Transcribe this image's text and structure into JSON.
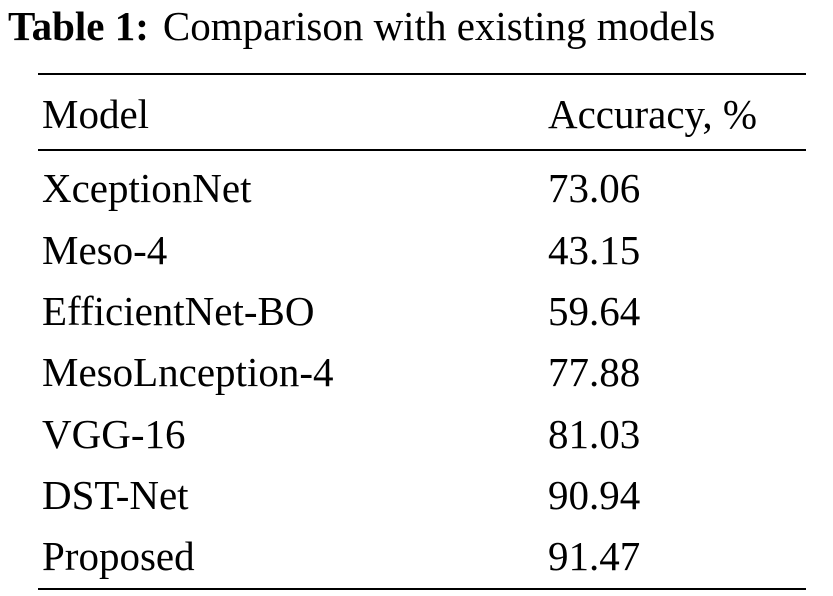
{
  "caption": {
    "label": "Table 1:",
    "text": "Comparison with existing models"
  },
  "table": {
    "headers": {
      "model": "Model",
      "accuracy": "Accuracy, %"
    },
    "rows": [
      {
        "model": "XceptionNet",
        "accuracy": "73.06"
      },
      {
        "model": "Meso-4",
        "accuracy": "43.15"
      },
      {
        "model": "EfficientNet-BO",
        "accuracy": "59.64"
      },
      {
        "model": "MesoLnception-4",
        "accuracy": "77.88"
      },
      {
        "model": "VGG-16",
        "accuracy": "81.03"
      },
      {
        "model": "DST-Net",
        "accuracy": "90.94"
      },
      {
        "model": "Proposed",
        "accuracy": "91.47"
      }
    ]
  }
}
